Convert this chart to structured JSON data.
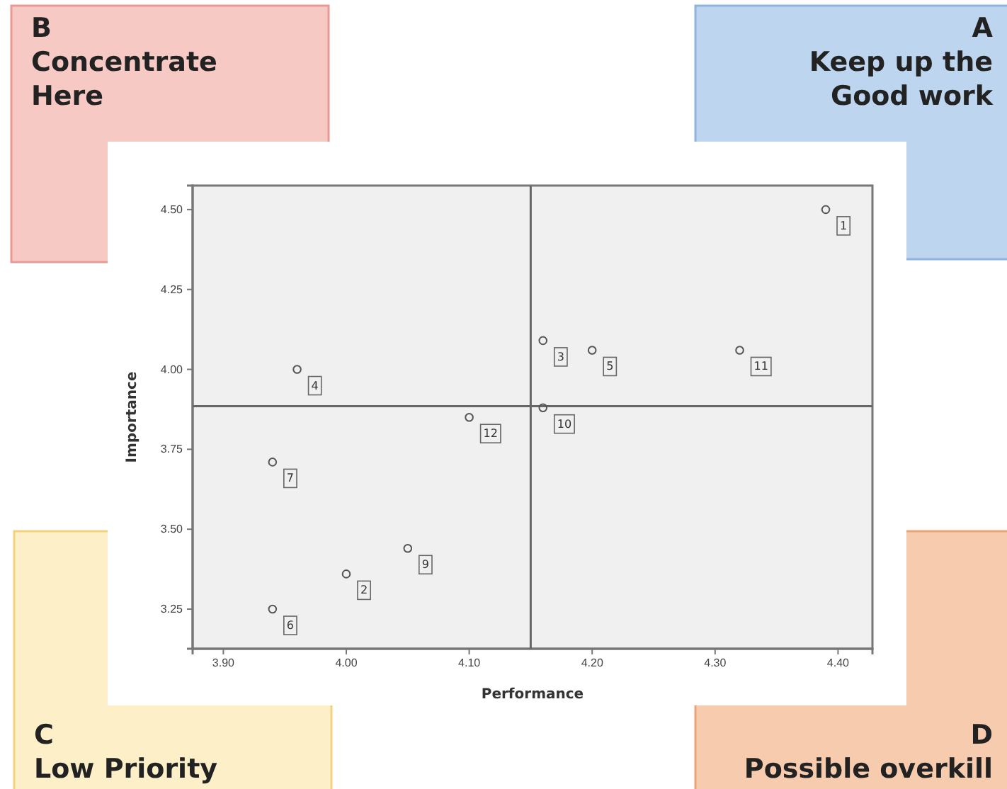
{
  "chart_data": {
    "type": "scatter",
    "xlabel": "Performance",
    "ylabel": "Importance",
    "x": [
      4.39,
      4.32,
      4.16,
      4.2,
      4.16,
      3.96,
      4.1,
      3.94,
      3.94,
      4.0,
      4.05
    ],
    "series": [
      {
        "color": "#555555",
        "values": [
          4.5,
          4.06,
          4.09,
          4.06,
          3.88,
          4.0,
          3.85,
          3.71,
          3.25,
          3.36,
          3.44
        ]
      }
    ],
    "marker": "circle",
    "xlim": [
      3.875,
      4.428
    ],
    "ylim": [
      3.126,
      4.575
    ],
    "xticks": [
      {
        "value": 3.9,
        "label": "3.90"
      },
      {
        "value": 4.0,
        "label": "4.00"
      },
      {
        "value": 4.1,
        "label": "4.10"
      },
      {
        "value": 4.2,
        "label": "4.20"
      },
      {
        "value": 4.3,
        "label": "4.30"
      },
      {
        "value": 4.4,
        "label": "4.40"
      }
    ],
    "yticks": [
      {
        "value": 3.25,
        "label": "3.25"
      },
      {
        "value": 3.5,
        "label": "3.50"
      },
      {
        "value": 3.75,
        "label": "3.75"
      },
      {
        "value": 4.0,
        "label": "4.00"
      },
      {
        "value": 4.25,
        "label": "4.25"
      },
      {
        "value": 4.5,
        "label": "4.50"
      }
    ],
    "ref_lines": [
      {
        "axis": "x",
        "value": 4.15
      },
      {
        "axis": "y",
        "value": 3.885
      }
    ],
    "grid": false,
    "annotations": [
      {
        "text": "1",
        "x": 4.39,
        "y": 4.5
      },
      {
        "text": "11",
        "x": 4.32,
        "y": 4.06
      },
      {
        "text": "3",
        "x": 4.16,
        "y": 4.09
      },
      {
        "text": "5",
        "x": 4.2,
        "y": 4.06
      },
      {
        "text": "10",
        "x": 4.16,
        "y": 3.88
      },
      {
        "text": "4",
        "x": 3.96,
        "y": 4.0
      },
      {
        "text": "12",
        "x": 4.1,
        "y": 3.85
      },
      {
        "text": "7",
        "x": 3.94,
        "y": 3.71
      },
      {
        "text": "6",
        "x": 3.94,
        "y": 3.25
      },
      {
        "text": "2",
        "x": 4.0,
        "y": 3.36
      },
      {
        "text": "9",
        "x": 4.05,
        "y": 3.44
      },
      "B\nConcentrate\nHere",
      "A\nKeep up the\nGood work",
      "C\nLow Priority",
      "D\nPossible overkill"
    ]
  }
}
